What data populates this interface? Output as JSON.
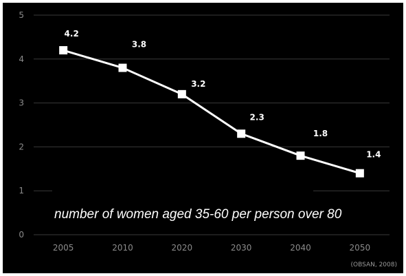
{
  "chart_data": {
    "type": "line",
    "categories": [
      "2005",
      "2010",
      "2020",
      "2030",
      "2040",
      "2050"
    ],
    "values": [
      4.2,
      3.8,
      3.2,
      2.3,
      1.8,
      1.4
    ],
    "data_labels": [
      "4.2",
      "3.8",
      "3.2",
      "2.3",
      "1.8",
      "1.4"
    ],
    "ylim": [
      0,
      5
    ],
    "yticks": [
      "0",
      "1",
      "2",
      "3",
      "4",
      "5"
    ],
    "grid": true,
    "annotation": "number of women aged 35-60 per person over 80",
    "source": "(OBSAN, 2008)",
    "colors": {
      "background": "#000000",
      "line": "#ffffff",
      "marker": "#ffffff",
      "grid": "#3a3a3a",
      "axis_text": "#8c8c8c"
    }
  }
}
